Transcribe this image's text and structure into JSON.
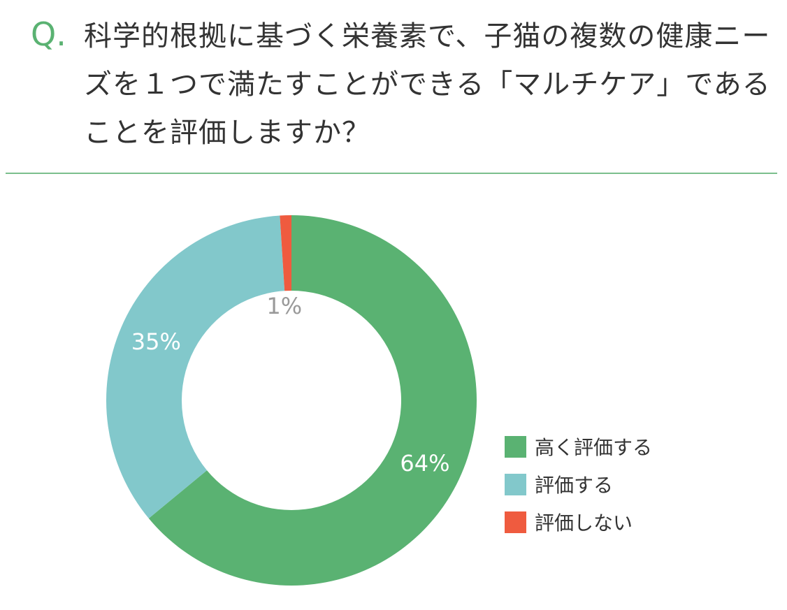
{
  "question": {
    "mark": "Q.",
    "text": "科学的根拠に基づく栄養素で、子猫の複数の健康ニーズを１つで満たすことができる「マルチケア」であることを評価しますか？"
  },
  "chart_data": {
    "type": "pie",
    "categories": [
      "高く評価する",
      "評価する",
      "評価しない"
    ],
    "values": [
      64,
      35,
      1
    ],
    "labels": [
      "64%",
      "35%",
      "1%"
    ],
    "colors": [
      "#5ab272",
      "#82c8cb",
      "#ef5b3f"
    ],
    "label_colors": [
      "#ffffff",
      "#ffffff",
      "#999999"
    ],
    "title": "",
    "legend_position": "bottom-right"
  }
}
